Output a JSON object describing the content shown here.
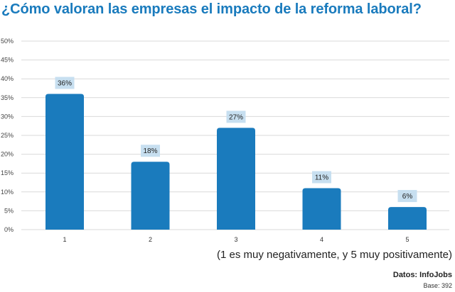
{
  "chart_data": {
    "type": "bar",
    "title": "¿Cómo valoran las empresas el impacto de la reforma laboral?",
    "xlabel": "(1 es muy negativamente, y 5 muy positivamente)",
    "ylabel": "",
    "categories": [
      "1",
      "2",
      "3",
      "4",
      "5"
    ],
    "values": [
      36,
      18,
      27,
      11,
      6
    ],
    "data_labels": [
      "36%",
      "18%",
      "27%",
      "11%",
      "6%"
    ],
    "yticks": [
      "0%",
      "5%",
      "10%",
      "15%",
      "20%",
      "25%",
      "30%",
      "35%",
      "40%",
      "45%",
      "50%"
    ],
    "ylim": [
      0,
      50
    ],
    "grid": true,
    "legend": "none",
    "colors": {
      "bar": "#1a7bbd",
      "label_bg": "#c7dff0",
      "grid": "#d9d9d9",
      "title": "#1a7bbd"
    }
  },
  "footer": {
    "source": "Datos: InfoJobs",
    "base": "Base: 392"
  }
}
